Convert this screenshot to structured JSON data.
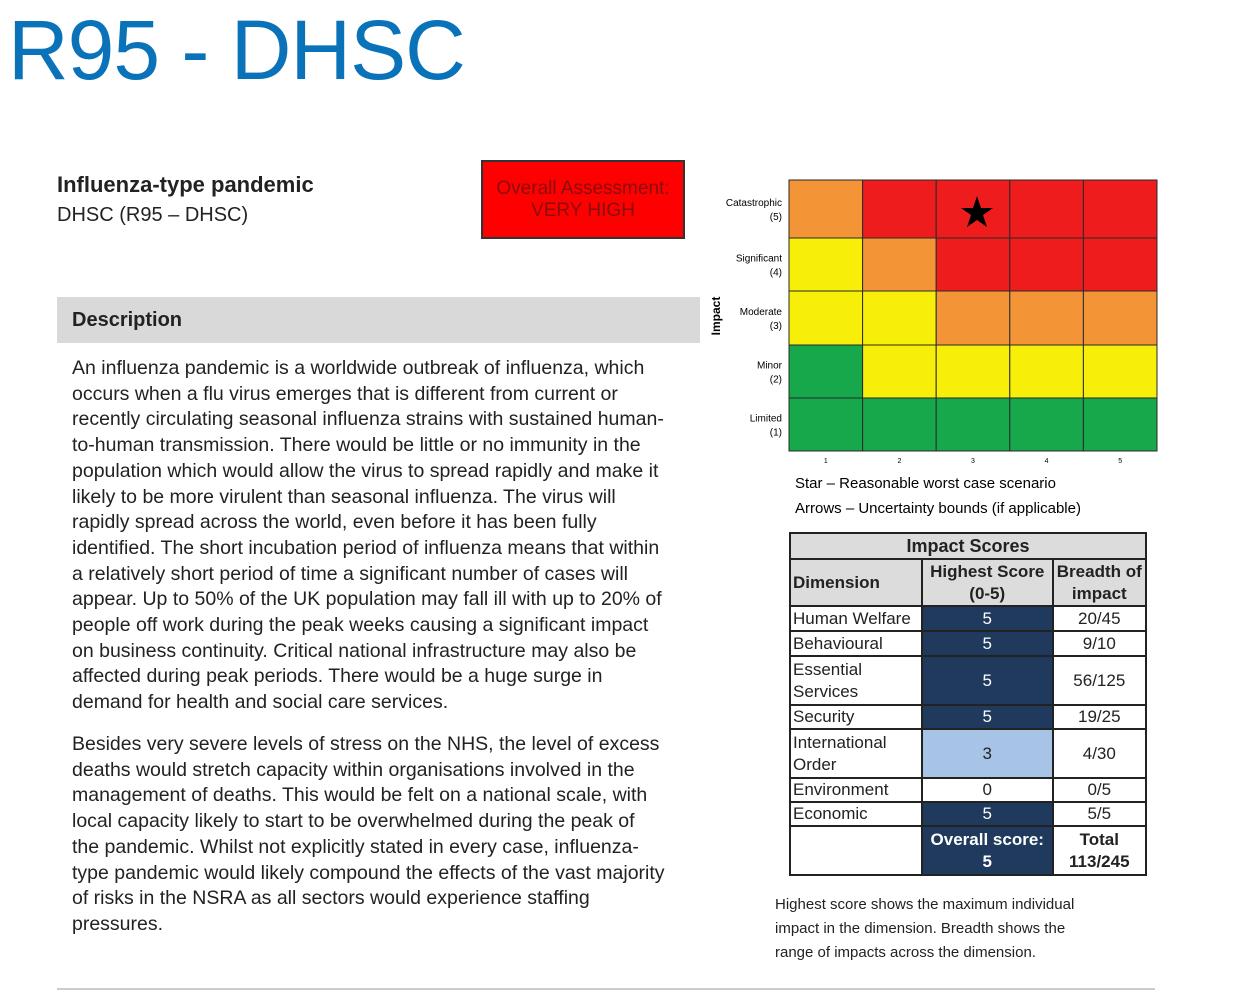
{
  "header": {
    "title": "R95 - DHSC"
  },
  "risk": {
    "title": "Influenza-type pandemic",
    "subtitle": "DHSC (R95 – DHSC)",
    "assessment": [
      "Overall Assessment:",
      "VERY HIGH"
    ]
  },
  "description": {
    "heading": "Description",
    "paragraphs": [
      [
        "An influenza pandemic is a worldwide outbreak of influenza, which",
        "occurs when a flu virus emerges that is different from current or",
        "recently circulating seasonal influenza strains with sustained human-",
        "to-human transmission. There would be little or no immunity in the",
        "population which would allow the virus to spread rapidly and make it",
        "likely to be more virulent than seasonal influenza. The virus will",
        "rapidly spread across the world, even before it has been fully",
        "identified. The short incubation period of influenza means that within",
        "a relatively short period of time a significant number of cases will",
        "appear. Up to 50% of the UK population may fall ill with up to 20% of",
        "people off work during the peak weeks causing a significant impact",
        "on business continuity. Critical national infrastructure may also be",
        "affected during peak periods. There would be a huge surge in",
        "demand for health and social care services."
      ],
      [
        "Besides very severe levels of stress on the NHS, the level of excess",
        "deaths would stretch capacity within organisations involved in the",
        "management of deaths. This would be felt on a national scale, with",
        "local capacity likely to start to be overwhelmed during the peak of",
        "the pandemic. Whilst not explicitly stated in every case, influenza-",
        "type pandemic would likely compound the effects of the vast majority",
        "of risks in the NSRA as all sectors would experience staffing",
        "pressures."
      ]
    ]
  },
  "matrix": {
    "y_axis_label": "Impact",
    "rows": [
      {
        "label": "Catastrophic",
        "level": "(5)",
        "colors": [
          "#f39436",
          "#ee1c1c",
          "#ee1c1c",
          "#ee1c1c",
          "#ee1c1c"
        ]
      },
      {
        "label": "Significant",
        "level": "(4)",
        "colors": [
          "#f7ee0a",
          "#f39436",
          "#ee1c1c",
          "#ee1c1c",
          "#ee1c1c"
        ]
      },
      {
        "label": "Moderate",
        "level": "(3)",
        "colors": [
          "#f7ee0a",
          "#f7ee0a",
          "#f39436",
          "#f39436",
          "#f39436"
        ]
      },
      {
        "label": "Minor",
        "level": "(2)",
        "colors": [
          "#16a84b",
          "#f7ee0a",
          "#f7ee0a",
          "#f7ee0a",
          "#f7ee0a"
        ]
      },
      {
        "label": "Limited",
        "level": "(1)",
        "colors": [
          "#16a84b",
          "#16a84b",
          "#16a84b",
          "#16a84b",
          "#16a84b"
        ]
      }
    ],
    "x_labels": [
      1,
      2,
      3,
      4,
      5
    ],
    "legend": [
      "Star – Reasonable worst case scenario",
      "Arrows – Uncertainty bounds (if applicable)"
    ]
  },
  "impact_scores": {
    "title": "Impact Scores",
    "columns": [
      "Dimension",
      "Highest Score (0-5)",
      "Breadth of impact"
    ],
    "rows": [
      [
        "Human Welfare",
        5,
        "20/45"
      ],
      [
        "Behavioural",
        5,
        "9/10"
      ],
      [
        "Essential Services",
        5,
        "56/125"
      ],
      [
        "Security",
        5,
        "19/25"
      ],
      [
        "International Order",
        3,
        "4/30"
      ],
      [
        "Environment",
        0,
        "0/5"
      ],
      [
        "Economic",
        5,
        "5/5"
      ]
    ],
    "overall": "Overall score: 5",
    "total": "Total 113/245",
    "note": [
      "Highest score shows the maximum individual",
      "impact in the dimension. Breadth shows the",
      "range of impacts across the dimension."
    ]
  }
}
